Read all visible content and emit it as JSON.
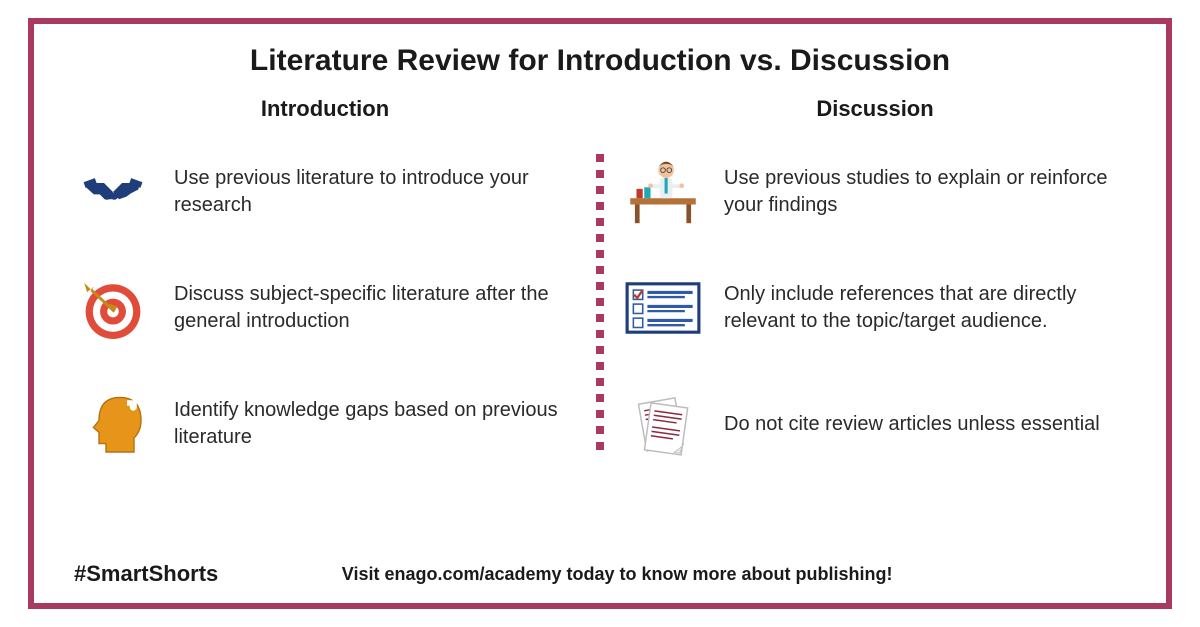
{
  "frame": {
    "border_color": "#a73a5e",
    "border_width": 6,
    "background": "#ffffff"
  },
  "title": "Literature Review for Introduction vs. Discussion",
  "left": {
    "heading": "Introduction",
    "items": [
      {
        "icon": "handshake-icon",
        "text": "Use previous literature to introduce your research"
      },
      {
        "icon": "target-icon",
        "text": "Discuss subject-specific literature after the general introduction"
      },
      {
        "icon": "head-gap-icon",
        "text": "Identify knowledge gaps based on previous literature"
      }
    ]
  },
  "right": {
    "heading": "Discussion",
    "items": [
      {
        "icon": "person-desk-icon",
        "text": "Use previous studies to explain or reinforce your findings"
      },
      {
        "icon": "checklist-icon",
        "text": "Only include references that are directly relevant to the topic/target audience."
      },
      {
        "icon": "papers-icon",
        "text": "Do not cite review articles unless essential"
      }
    ]
  },
  "divider": {
    "dot_color": "#a73a5e",
    "dot_size": 8,
    "dot_count": 19
  },
  "footer": {
    "hashtag": "#SmartShorts",
    "cta": "Visit enago.com/academy today to know more about publishing!"
  },
  "palette": {
    "handshake": "#1f3d7a",
    "target_red": "#e04b3a",
    "target_white": "#ffffff",
    "arrow": "#c68b16",
    "head": "#e6941a",
    "checklist_border": "#1f3d7a",
    "checklist_line": "#2f5aa8",
    "checklist_mark": "#c0392b",
    "paper_fill": "#ffffff",
    "paper_line": "#8a2a3f",
    "desk_brown": "#b5713a",
    "person_skin": "#f2c29b",
    "person_hair": "#7a4a25",
    "person_tie": "#1fa8b5"
  },
  "typography": {
    "title_fontsize": 30,
    "col_title_fontsize": 22,
    "body_fontsize": 20,
    "hashtag_fontsize": 22,
    "cta_fontsize": 18,
    "font_family": "Arial"
  }
}
